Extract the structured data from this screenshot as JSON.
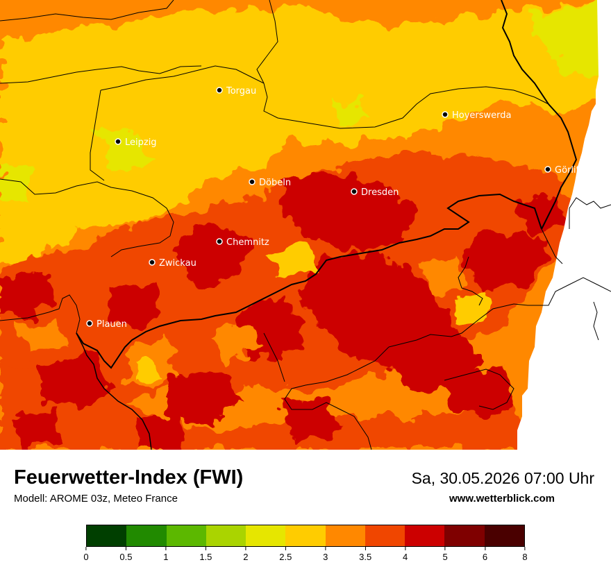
{
  "title": "Feuerwetter-Index (FWI)",
  "model": "Modell: AROME 03z, Meteo France",
  "datetime": "Sa, 30.05.2026 07:00 Uhr",
  "website": "www.wetterblick.com",
  "cities": [
    {
      "name": "Torgau"
    },
    {
      "name": "Hoyerswerda"
    },
    {
      "name": "Leipzig"
    },
    {
      "name": "Görlitz"
    },
    {
      "name": "Döbeln"
    },
    {
      "name": "Dresden"
    },
    {
      "name": "Chemnitz"
    },
    {
      "name": "Zwickau"
    },
    {
      "name": "Plauen"
    }
  ],
  "legend": {
    "colors": [
      "#003f00",
      "#218a00",
      "#5cb800",
      "#aad400",
      "#e6e600",
      "#ffcc00",
      "#ff8800",
      "#f04600",
      "#cc0000",
      "#7f0000",
      "#4a0000"
    ],
    "ticks": [
      "0",
      "0.5",
      "1",
      "1.5",
      "2",
      "2.5",
      "3",
      "3.5",
      "4",
      "5",
      "6",
      "8"
    ]
  }
}
